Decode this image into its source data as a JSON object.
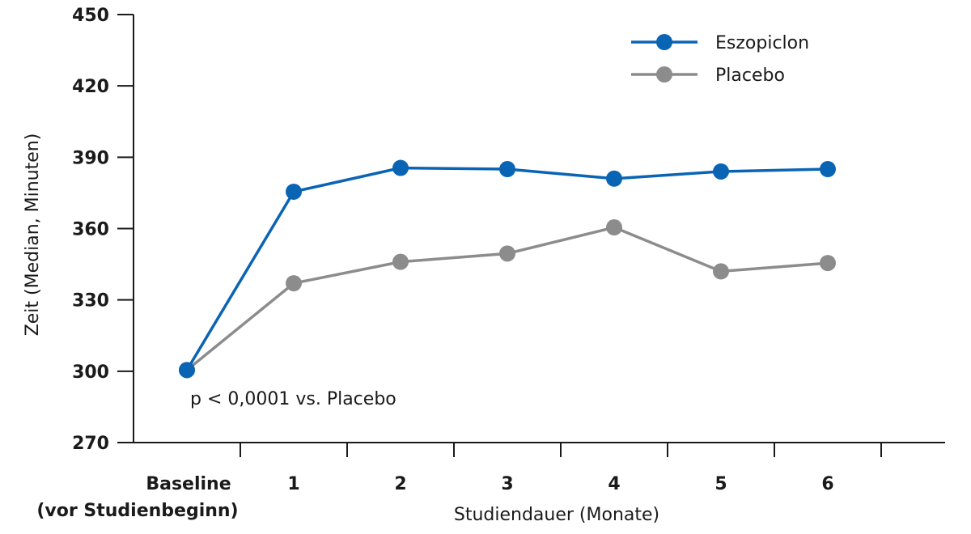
{
  "chart_data": {
    "type": "line",
    "title": "",
    "xlabel": "Studiendauer (Monate)",
    "ylabel": "Zeit (Median, Minuten)",
    "categories": [
      "Baseline",
      "1",
      "2",
      "3",
      "4",
      "5",
      "6"
    ],
    "baseline_sublabel": "(vor Studienbeginn)",
    "ylim": [
      270,
      450
    ],
    "yticks": [
      270,
      300,
      330,
      360,
      390,
      420,
      450
    ],
    "grid": false,
    "legend_position": "top-right",
    "annotation": "p < 0,0001 vs. Placebo",
    "series": [
      {
        "name": "Eszopiclon",
        "color": "#0a64b4",
        "values": [
          300.5,
          375.5,
          385.5,
          385,
          381,
          384,
          385
        ]
      },
      {
        "name": "Placebo",
        "color": "#8c8c8c",
        "values": [
          300.5,
          337,
          346,
          349.5,
          360.5,
          342,
          345.5
        ]
      }
    ]
  }
}
